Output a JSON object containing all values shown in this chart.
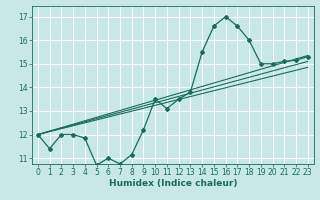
{
  "xlabel": "Humidex (Indice chaleur)",
  "background_color": "#c8e8e8",
  "grid_color": "#ffffff",
  "line_color": "#1a6b5a",
  "xlim": [
    -0.5,
    23.5
  ],
  "ylim": [
    10.75,
    17.45
  ],
  "yticks": [
    11,
    12,
    13,
    14,
    15,
    16,
    17
  ],
  "xticks": [
    0,
    1,
    2,
    3,
    4,
    5,
    6,
    7,
    8,
    9,
    10,
    11,
    12,
    13,
    14,
    15,
    16,
    17,
    18,
    19,
    20,
    21,
    22,
    23
  ],
  "curve_x": [
    0,
    1,
    2,
    3,
    4,
    5,
    6,
    7,
    8,
    9,
    10,
    11,
    12,
    13,
    14,
    15,
    16,
    17,
    18,
    19,
    20,
    21,
    22,
    23
  ],
  "curve_y": [
    12.0,
    11.4,
    12.0,
    12.0,
    11.85,
    10.7,
    11.0,
    10.75,
    11.15,
    12.2,
    13.5,
    13.1,
    13.5,
    13.8,
    15.5,
    16.6,
    17.0,
    16.6,
    16.0,
    15.0,
    15.0,
    15.1,
    15.15,
    15.3
  ],
  "line1_x": [
    0,
    23
  ],
  "line1_y": [
    12.0,
    15.1
  ],
  "line2_x": [
    0,
    23
  ],
  "line2_y": [
    12.0,
    14.85
  ],
  "line3_x": [
    0,
    23
  ],
  "line3_y": [
    12.0,
    15.35
  ],
  "tick_fontsize": 5.5,
  "xlabel_fontsize": 6.5
}
